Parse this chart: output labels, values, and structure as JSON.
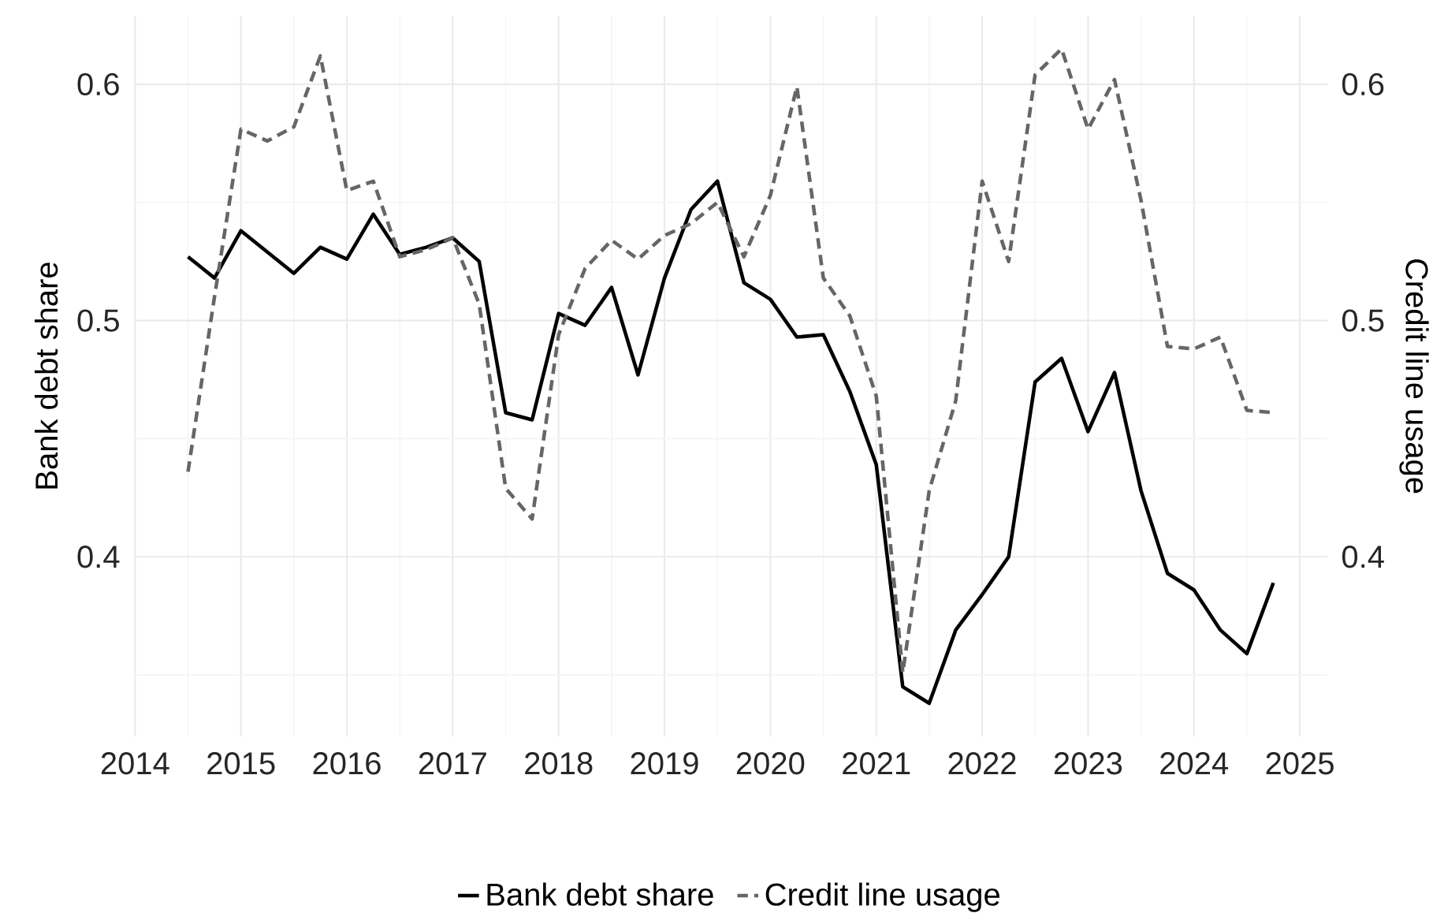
{
  "chart_data": {
    "type": "line",
    "ylabel": "Bank debt share",
    "y2label": "Credit line usage",
    "x": [
      2014.5,
      2014.75,
      2015,
      2015.25,
      2015.5,
      2015.75,
      2016,
      2016.25,
      2016.5,
      2016.75,
      2017,
      2017.25,
      2017.5,
      2017.75,
      2018,
      2018.25,
      2018.5,
      2018.75,
      2019,
      2019.25,
      2019.5,
      2019.75,
      2020,
      2020.25,
      2020.5,
      2020.75,
      2021,
      2021.25,
      2021.5,
      2021.75,
      2022,
      2022.25,
      2022.5,
      2022.75,
      2023,
      2023.25,
      2023.5,
      2023.75,
      2024,
      2024.25,
      2024.5,
      2024.75
    ],
    "series": [
      {
        "name": "Bank debt share",
        "color": "#000000",
        "line_style": "solid",
        "values": [
          0.527,
          0.518,
          0.538,
          0.529,
          0.52,
          0.531,
          0.526,
          0.545,
          0.528,
          0.531,
          0.535,
          0.525,
          0.461,
          0.458,
          0.503,
          0.498,
          0.514,
          0.477,
          0.518,
          0.547,
          0.559,
          0.516,
          0.509,
          0.493,
          0.494,
          0.47,
          0.439,
          0.345,
          0.338,
          0.369,
          0.384,
          0.4,
          0.474,
          0.484,
          0.453,
          0.478,
          0.428,
          0.393,
          0.386,
          0.369,
          0.359,
          0.389
        ]
      },
      {
        "name": "Credit line usage",
        "color": "#666666",
        "line_style": "dashed",
        "axis": "y2",
        "values": [
          0.436,
          0.51,
          0.581,
          0.576,
          0.582,
          0.612,
          0.555,
          0.559,
          0.527,
          0.53,
          0.535,
          0.507,
          0.429,
          0.416,
          0.494,
          0.522,
          0.534,
          0.526,
          0.536,
          0.541,
          0.55,
          0.527,
          0.553,
          0.599,
          0.518,
          0.502,
          0.468,
          0.351,
          0.428,
          0.466,
          0.559,
          0.525,
          0.604,
          0.615,
          0.581,
          0.602,
          0.551,
          0.489,
          0.488,
          0.493,
          0.462,
          0.461
        ]
      }
    ],
    "xlim": [
      2013.99,
      2025.26
    ],
    "xticks": [
      2014,
      2015,
      2016,
      2017,
      2018,
      2019,
      2020,
      2021,
      2022,
      2023,
      2024,
      2025
    ],
    "ylim": [
      0.324,
      0.629
    ],
    "yticks": [
      0.4,
      0.5,
      0.6
    ],
    "y2lim": [
      0.324,
      0.629
    ],
    "y2ticks": [
      0.4,
      0.5,
      0.6
    ],
    "grid": true,
    "legend": "bottom"
  }
}
